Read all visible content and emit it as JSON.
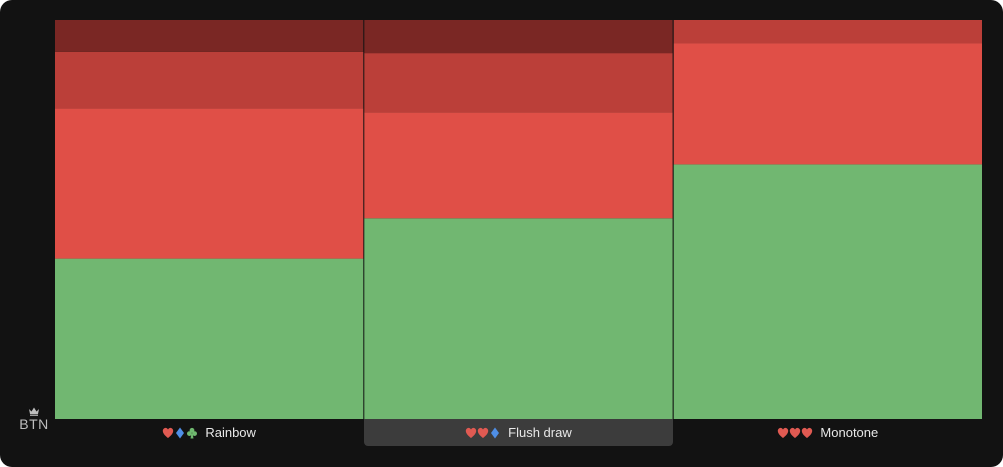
{
  "position_label": "BTN",
  "colors": {
    "green": "#71b771",
    "red": "#e04f47",
    "dark_red": "#bb3f39",
    "darker_red": "#7a2724",
    "heart": "#e05a52",
    "diamond": "#4f8fe6",
    "club": "#6fb86f"
  },
  "chart_data": {
    "type": "bar",
    "stacked": true,
    "normalized": true,
    "categories": [
      "Rainbow",
      "Flush draw",
      "Monotone"
    ],
    "category_suits": [
      [
        "heart",
        "diamond",
        "club"
      ],
      [
        "heart",
        "heart",
        "diamond"
      ],
      [
        "heart",
        "heart",
        "heart"
      ]
    ],
    "selected_category": "Flush draw",
    "series": [
      {
        "color": "#71b771",
        "values": [
          40.2,
          50.3,
          63.8
        ]
      },
      {
        "color": "#e04f47",
        "values": [
          37.7,
          26.6,
          30.4
        ]
      },
      {
        "color": "#bb3f39",
        "values": [
          14.1,
          14.8,
          5.8
        ]
      },
      {
        "color": "#7a2724",
        "values": [
          8.0,
          8.3,
          0
        ]
      }
    ],
    "ylim": [
      0,
      100
    ],
    "grid": false,
    "legend": "none"
  }
}
